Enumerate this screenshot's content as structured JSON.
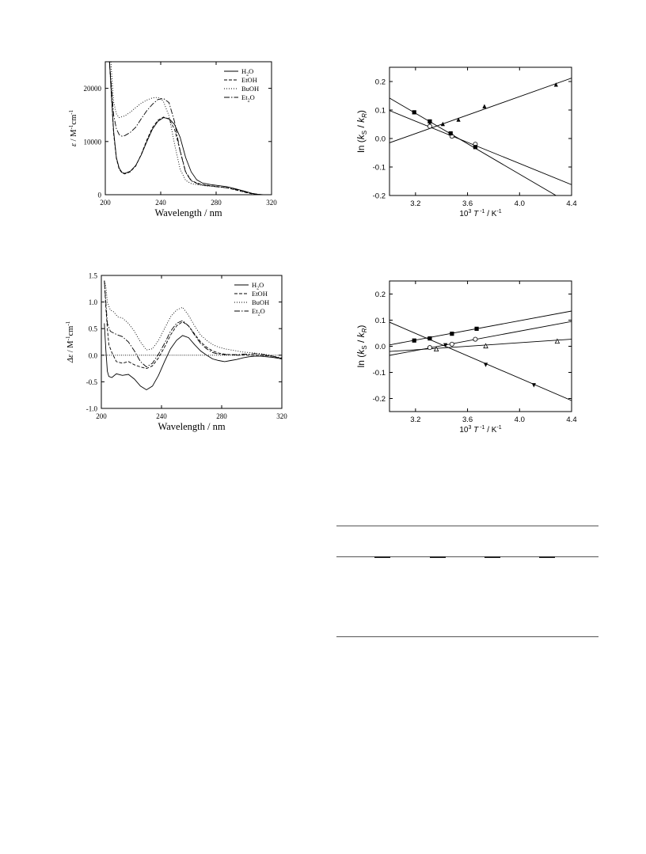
{
  "chart_data": [
    {
      "type": "line",
      "id": "uv",
      "xlabel": "Wavelength / nm",
      "ylabel_parts": [
        "ε",
        " / M",
        "-1",
        "cm",
        "-1"
      ],
      "xlim": [
        200,
        320
      ],
      "ylim": [
        0,
        25000
      ],
      "xticks": [
        200,
        240,
        280,
        320
      ],
      "yticks": [
        0,
        10000,
        20000
      ],
      "legend_position": "top-right",
      "series": [
        {
          "name": "H2O",
          "legend_main": "H",
          "legend_sub": "2",
          "legend_tail": "O",
          "dash": "solid",
          "x": [
            203,
            206,
            208,
            210,
            212,
            214,
            218,
            222,
            226,
            230,
            234,
            238,
            242,
            246,
            250,
            254,
            258,
            262,
            266,
            270,
            276,
            282,
            288,
            294,
            300,
            306,
            310,
            314,
            320
          ],
          "y": [
            25000,
            12000,
            7000,
            5000,
            4200,
            4000,
            4400,
            5500,
            7500,
            10000,
            12300,
            13800,
            14500,
            14300,
            13200,
            10800,
            7000,
            4300,
            2800,
            2200,
            1900,
            1700,
            1500,
            1100,
            700,
            250,
            80,
            0,
            0
          ]
        },
        {
          "name": "EtOH",
          "legend_main": "EtOH",
          "legend_sub": "",
          "legend_tail": "",
          "dash": "4,2",
          "x": [
            203,
            206,
            208,
            210,
            212,
            214,
            218,
            222,
            226,
            230,
            234,
            238,
            242,
            246,
            250,
            254,
            258,
            262,
            266,
            270,
            276,
            282,
            288,
            294,
            300,
            306,
            310,
            314,
            320
          ],
          "y": [
            25000,
            11500,
            6800,
            4800,
            4100,
            3900,
            4300,
            5400,
            7600,
            10300,
            12600,
            14000,
            14600,
            14200,
            12300,
            8300,
            4300,
            2700,
            2200,
            1900,
            1700,
            1500,
            1300,
            900,
            500,
            150,
            50,
            0,
            0
          ]
        },
        {
          "name": "BuOH",
          "legend_main": "BuOH",
          "legend_sub": "",
          "legend_tail": "",
          "dash": "1,2",
          "x": [
            204,
            206,
            208,
            210,
            214,
            218,
            222,
            226,
            230,
            234,
            238,
            240,
            242,
            246,
            250,
            254,
            258,
            262,
            268,
            274,
            280,
            288,
            296,
            304,
            312,
            320
          ],
          "y": [
            25000,
            17500,
            15200,
            14500,
            14800,
            15500,
            16400,
            17200,
            17800,
            18200,
            18300,
            18100,
            17500,
            14800,
            9500,
            4800,
            2700,
            2100,
            1800,
            1600,
            1500,
            1300,
            900,
            300,
            0,
            0
          ]
        },
        {
          "name": "Et2O",
          "legend_main": "Et",
          "legend_sub": "2",
          "legend_tail": "O",
          "dash": "7,2,1.5,2",
          "x": [
            203,
            206,
            208,
            210,
            212,
            214,
            218,
            222,
            226,
            230,
            234,
            238,
            242,
            246,
            250,
            254,
            258,
            262,
            268,
            274,
            280,
            288,
            296,
            304,
            312,
            320
          ],
          "y": [
            25000,
            15000,
            12400,
            11300,
            11000,
            11100,
            11700,
            12700,
            14300,
            15800,
            17000,
            17900,
            18100,
            17300,
            13700,
            8200,
            4200,
            2600,
            1900,
            1700,
            1500,
            1300,
            900,
            300,
            0,
            0
          ]
        }
      ]
    },
    {
      "type": "scatter",
      "id": "arrhenius-top",
      "xlabel_parts": [
        "10",
        "3",
        " T",
        " -1",
        "  / K",
        "-1"
      ],
      "ylabel_parts": [
        "ln (k",
        "S",
        " / k",
        "R",
        ")"
      ],
      "xlim": [
        3.0,
        4.4
      ],
      "ylim": [
        -0.2,
        0.25
      ],
      "xticks": [
        3.2,
        3.6,
        4.0,
        4.4
      ],
      "yticks": [
        -0.2,
        -0.1,
        0.0,
        0.1,
        0.2
      ],
      "fit_lines": [
        {
          "x": [
            3.0,
            4.4
          ],
          "y": [
            -0.015,
            0.212
          ]
        },
        {
          "x": [
            3.0,
            4.4
          ],
          "y": [
            0.098,
            -0.162
          ]
        },
        {
          "x": [
            3.0,
            4.4
          ],
          "y": [
            0.142,
            -0.232
          ]
        }
      ],
      "series": [
        {
          "marker": "triangle",
          "x": [
            3.31,
            3.41,
            3.53,
            3.73,
            4.28
          ],
          "y": [
            0.048,
            0.05,
            0.065,
            0.112,
            0.188
          ]
        },
        {
          "marker": "circle-open",
          "x": [
            3.31,
            3.48,
            3.66
          ],
          "y": [
            0.043,
            0.008,
            -0.02
          ]
        },
        {
          "marker": "square",
          "x": [
            3.19,
            3.31,
            3.47,
            3.66
          ],
          "y": [
            0.092,
            0.06,
            0.018,
            -0.03
          ]
        }
      ]
    },
    {
      "type": "line",
      "id": "cd",
      "xlabel": "Wavelength / nm",
      "ylabel_parts": [
        "Δε",
        " / M",
        "-1",
        "cm",
        "-1"
      ],
      "xlim": [
        200,
        320
      ],
      "ylim": [
        -1.0,
        1.5
      ],
      "xticks": [
        200,
        240,
        280,
        320
      ],
      "yticks": [
        -1.0,
        -0.5,
        0.0,
        0.5,
        1.0,
        1.5
      ],
      "zero_line": true,
      "legend_position": "top-right",
      "series": [
        {
          "name": "H2O",
          "legend_main": "H",
          "legend_sub": "2",
          "legend_tail": "O",
          "dash": "solid",
          "x": [
            202,
            203,
            204,
            205,
            207,
            210,
            214,
            218,
            222,
            226,
            230,
            234,
            238,
            242,
            246,
            250,
            254,
            258,
            262,
            266,
            270,
            274,
            278,
            282,
            286,
            290,
            294,
            298,
            302,
            306,
            310,
            314,
            318,
            320
          ],
          "y": [
            0.6,
            0.1,
            -0.3,
            -0.4,
            -0.42,
            -0.35,
            -0.38,
            -0.36,
            -0.45,
            -0.58,
            -0.65,
            -0.58,
            -0.38,
            -0.12,
            0.12,
            0.28,
            0.37,
            0.33,
            0.2,
            0.08,
            0.0,
            -0.07,
            -0.1,
            -0.12,
            -0.1,
            -0.08,
            -0.05,
            -0.03,
            -0.02,
            -0.02,
            -0.03,
            -0.04,
            -0.06,
            -0.07
          ]
        },
        {
          "name": "EtOH",
          "legend_main": "EtOH",
          "legend_sub": "",
          "legend_tail": "",
          "dash": "4,2",
          "x": [
            202,
            203,
            204,
            205,
            207,
            210,
            214,
            218,
            222,
            226,
            230,
            234,
            238,
            242,
            246,
            250,
            254,
            258,
            262,
            266,
            270,
            274,
            278,
            282,
            286,
            290,
            294,
            298,
            302,
            306,
            310,
            314,
            318,
            320
          ],
          "y": [
            1.4,
            0.9,
            0.5,
            0.2,
            0.05,
            -0.12,
            -0.15,
            -0.12,
            -0.18,
            -0.22,
            -0.25,
            -0.2,
            -0.05,
            0.15,
            0.38,
            0.55,
            0.63,
            0.55,
            0.4,
            0.25,
            0.15,
            0.08,
            0.04,
            0.02,
            0.01,
            0.0,
            0.0,
            0.0,
            0.0,
            0.0,
            -0.01,
            -0.02,
            -0.05,
            -0.06
          ]
        },
        {
          "name": "BuOH",
          "legend_main": "BuOH",
          "legend_sub": "",
          "legend_tail": "",
          "dash": "1,2",
          "x": [
            202,
            203,
            204,
            206,
            208,
            211,
            214,
            218,
            222,
            226,
            230,
            234,
            238,
            242,
            246,
            250,
            254,
            258,
            262,
            266,
            270,
            274,
            278,
            282,
            286,
            290,
            294,
            298,
            302,
            306,
            310,
            314,
            318,
            320
          ],
          "y": [
            1.4,
            1.3,
            1.0,
            0.85,
            0.82,
            0.72,
            0.7,
            0.6,
            0.45,
            0.25,
            0.1,
            0.12,
            0.28,
            0.5,
            0.72,
            0.85,
            0.9,
            0.75,
            0.55,
            0.38,
            0.28,
            0.2,
            0.15,
            0.12,
            0.1,
            0.08,
            0.06,
            0.05,
            0.04,
            0.03,
            0.01,
            -0.02,
            -0.05,
            -0.06
          ]
        },
        {
          "name": "Et2O",
          "legend_main": "Et",
          "legend_sub": "2",
          "legend_tail": "O",
          "dash": "7,2,1.5,2",
          "x": [
            202,
            203,
            204,
            206,
            208,
            211,
            214,
            218,
            222,
            226,
            230,
            234,
            238,
            242,
            246,
            250,
            254,
            258,
            262,
            266,
            270,
            274,
            278,
            282,
            286,
            290,
            294,
            298,
            302,
            306,
            310,
            314,
            318,
            320
          ],
          "y": [
            1.4,
            1.0,
            0.6,
            0.45,
            0.42,
            0.38,
            0.35,
            0.25,
            0.08,
            -0.12,
            -0.22,
            -0.15,
            0.02,
            0.22,
            0.45,
            0.6,
            0.65,
            0.55,
            0.38,
            0.22,
            0.12,
            0.05,
            0.02,
            0.01,
            0.01,
            0.01,
            0.02,
            0.02,
            0.03,
            0.02,
            0.0,
            -0.02,
            -0.04,
            -0.05
          ]
        }
      ]
    },
    {
      "type": "scatter",
      "id": "arrhenius-bottom",
      "xlabel_parts": [
        "10",
        "3",
        " T",
        " -1",
        " / K",
        "-1"
      ],
      "ylabel_parts": [
        "ln (k",
        "S",
        " / k",
        "R",
        ")"
      ],
      "xlim": [
        3.0,
        4.4
      ],
      "ylim": [
        -0.25,
        0.25
      ],
      "xticks": [
        3.2,
        3.6,
        4.0,
        4.4
      ],
      "yticks": [
        -0.2,
        -0.1,
        0.0,
        0.1,
        0.2
      ],
      "fit_lines": [
        {
          "x": [
            3.0,
            4.4
          ],
          "y": [
            0.005,
            0.135
          ]
        },
        {
          "x": [
            3.0,
            4.4
          ],
          "y": [
            -0.035,
            0.095
          ]
        },
        {
          "x": [
            3.0,
            4.4
          ],
          "y": [
            -0.02,
            0.027
          ]
        },
        {
          "x": [
            3.0,
            4.4
          ],
          "y": [
            0.092,
            -0.208
          ]
        }
      ],
      "series": [
        {
          "marker": "square",
          "x": [
            3.19,
            3.31,
            3.48,
            3.67
          ],
          "y": [
            0.022,
            0.03,
            0.048,
            0.067
          ]
        },
        {
          "marker": "circle-open",
          "x": [
            3.31,
            3.48,
            3.66
          ],
          "y": [
            -0.005,
            0.008,
            0.027
          ]
        },
        {
          "marker": "triangle-open",
          "x": [
            3.36,
            3.74,
            4.29
          ],
          "y": [
            -0.012,
            0.0,
            0.018
          ]
        },
        {
          "marker": "triangle-down",
          "x": [
            3.43,
            3.74,
            4.11
          ],
          "y": [
            0.005,
            -0.07,
            -0.148
          ]
        }
      ]
    }
  ]
}
